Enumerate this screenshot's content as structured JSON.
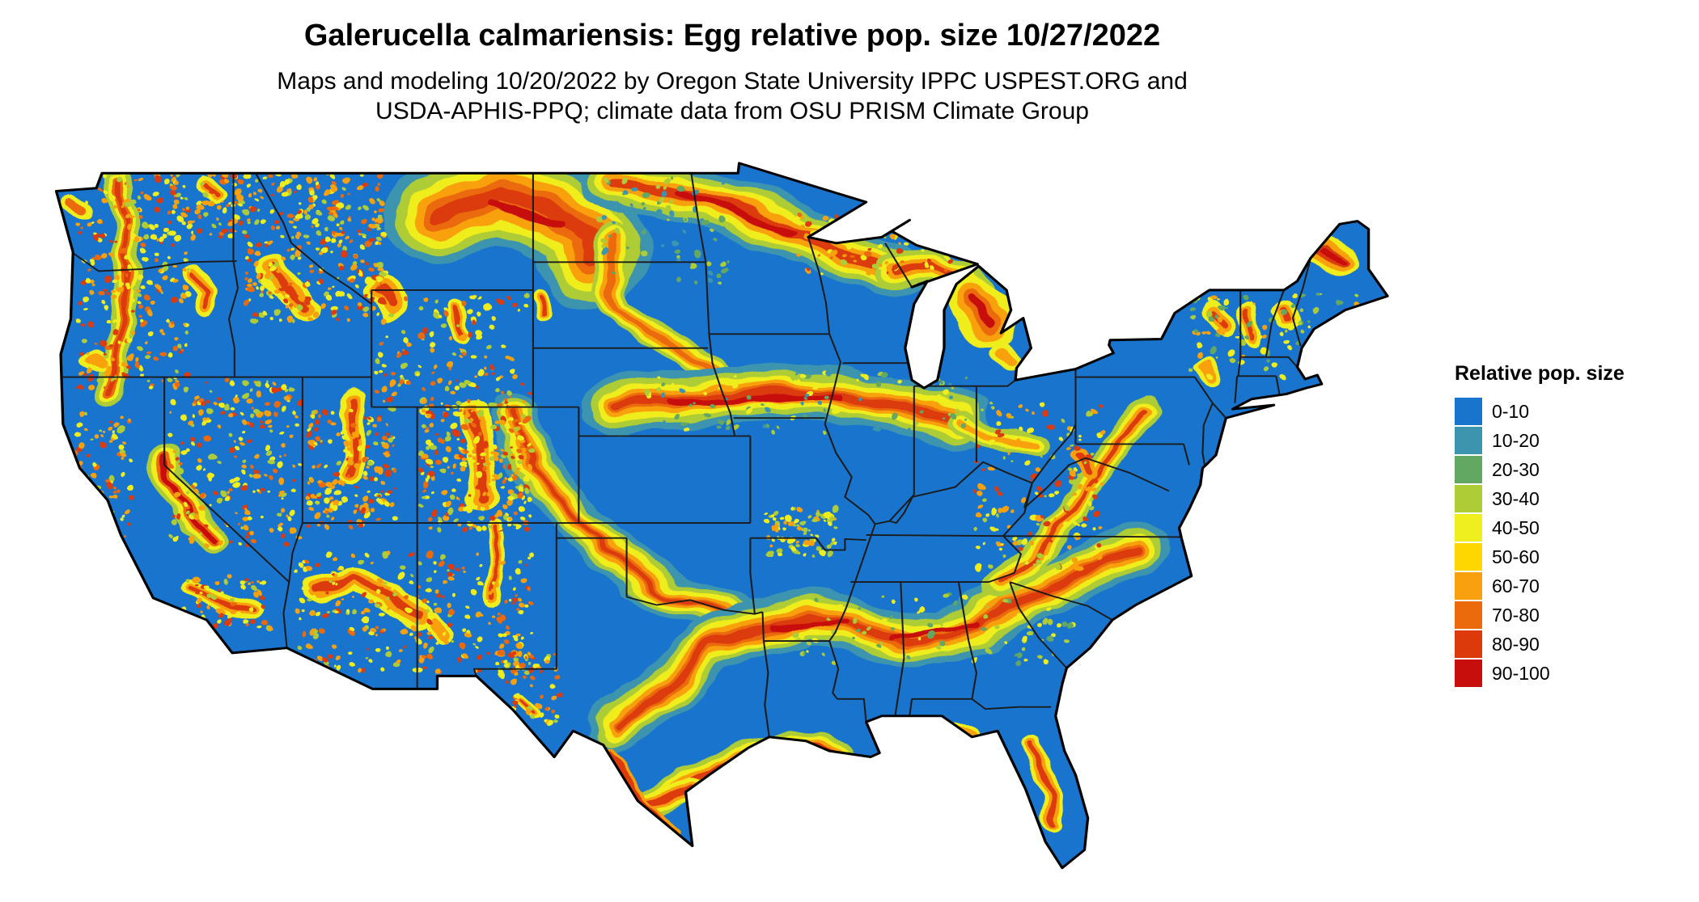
{
  "header": {
    "title": "Galerucella calmariensis: Egg relative pop. size 10/27/2022",
    "subtitle_line1": "Maps and modeling 10/20/2022 by Oregon State University IPPC USPEST.ORG and",
    "subtitle_line2": "USDA-APHIS-PPQ; climate data from OSU PRISM Climate Group"
  },
  "legend": {
    "title": "Relative pop. size",
    "bins": [
      {
        "label": "0-10",
        "color": "#1874CD"
      },
      {
        "label": "10-20",
        "color": "#3D94AF"
      },
      {
        "label": "20-30",
        "color": "#63A862"
      },
      {
        "label": "30-40",
        "color": "#AECC35"
      },
      {
        "label": "40-50",
        "color": "#EFEE1E"
      },
      {
        "label": "50-60",
        "color": "#FFD700"
      },
      {
        "label": "60-70",
        "color": "#F9A00F"
      },
      {
        "label": "70-80",
        "color": "#EB6A0C"
      },
      {
        "label": "80-90",
        "color": "#DC3A0B"
      },
      {
        "label": "90-100",
        "color": "#C80D0D"
      }
    ]
  },
  "chart_data": {
    "type": "heatmap",
    "subtype": "raster-choropleth-map",
    "region": "Contiguous United States with state boundaries",
    "variable": "Egg relative pop. size",
    "species": "Galerucella calmariensis",
    "map_date": "10/27/2022",
    "model_date": "10/20/2022",
    "legend_title": "Relative pop. size",
    "value_bins": [
      "0-10",
      "10-20",
      "20-30",
      "30-40",
      "40-50",
      "50-60",
      "60-70",
      "70-80",
      "80-90",
      "90-100"
    ],
    "bin_colors": [
      "#1874CD",
      "#3D94AF",
      "#63A862",
      "#AECC35",
      "#EFEE1E",
      "#FFD700",
      "#F9A00F",
      "#EB6A0C",
      "#DC3A0B",
      "#C80D0D"
    ],
    "base_value_bin": "0-10",
    "high_value_regions": [
      "eastern Montana / western North Dakota",
      "northern Minnesota into Wisconsin and northern lower Michigan",
      "Platte corridor band across Nebraska, Iowa and Illinois",
      "arc from central Texas through Arkansas, Mississippi, Alabama, Georgia to the Carolinas",
      "Texas Gulf Coast and south Texas",
      "central Florida ridge",
      "western mountain ranges (Cascades, Sierra Nevada, Rockies, Mogollon Rim)",
      "Appalachians and northern New England"
    ]
  }
}
